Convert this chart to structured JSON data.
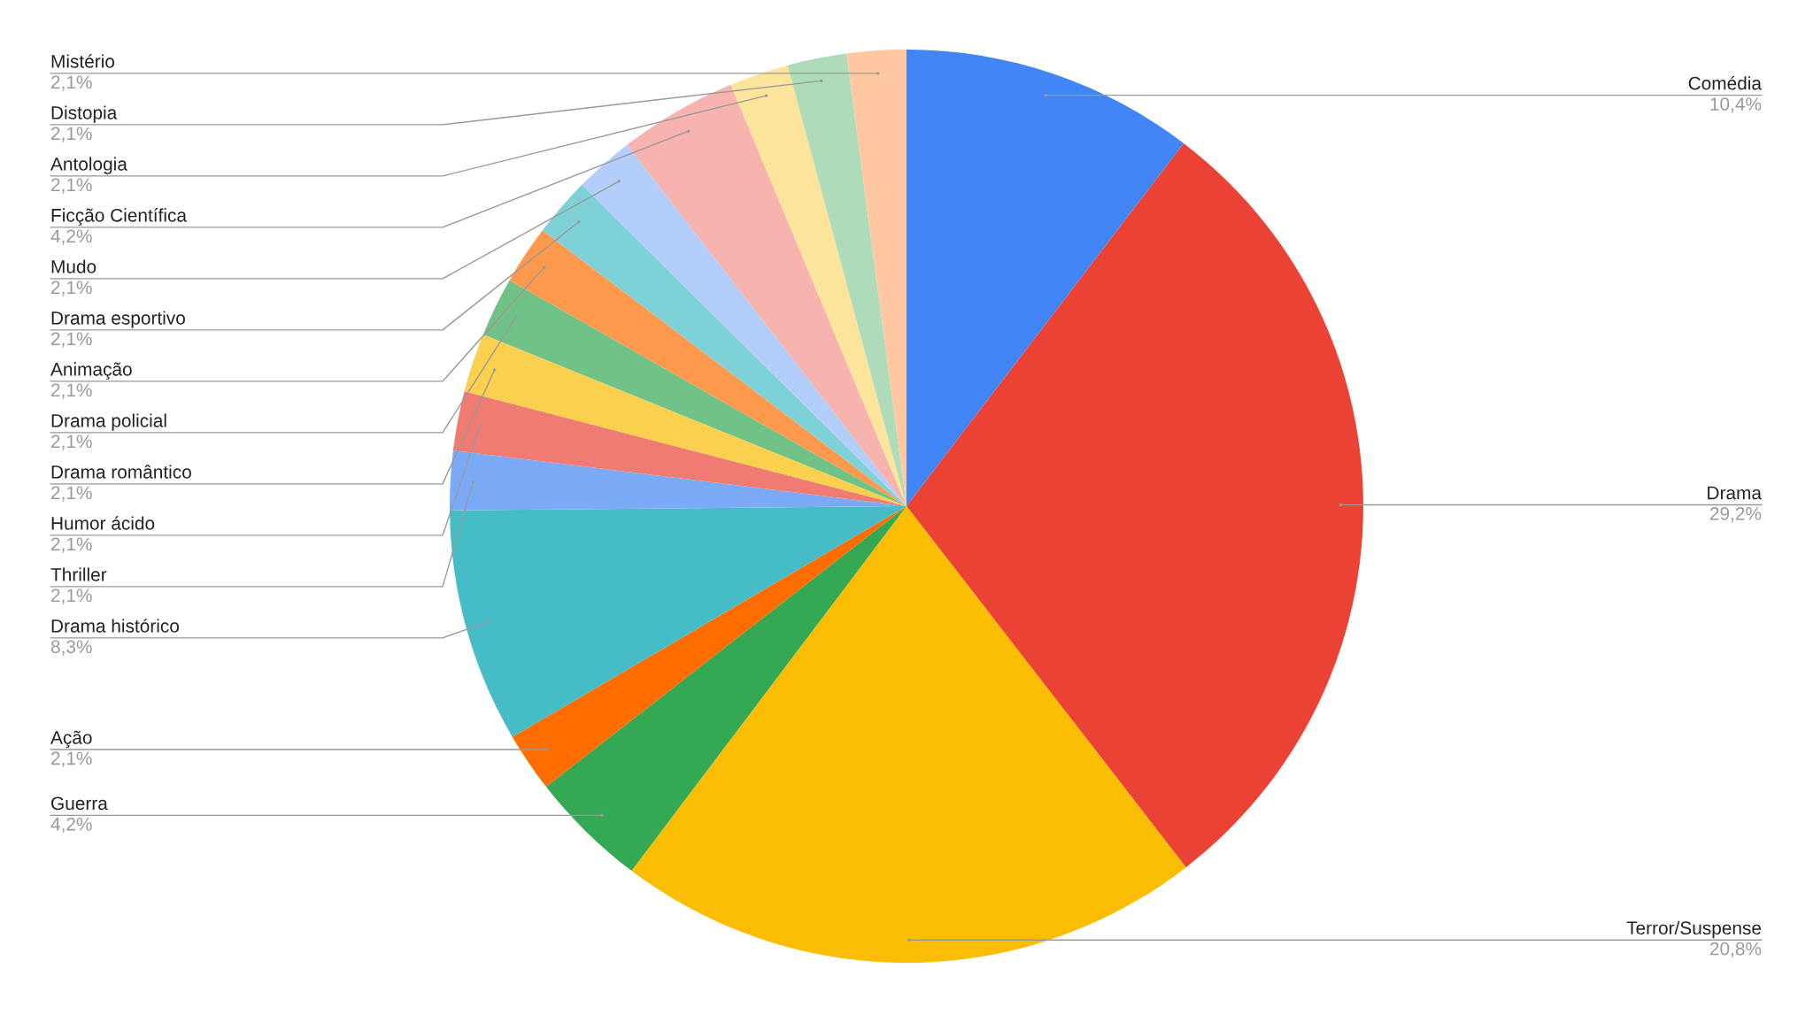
{
  "chart_data": {
    "type": "pie",
    "categories": [
      "Comédia",
      "Drama",
      "Terror/Suspense",
      "Guerra",
      "Ação",
      "Drama histórico",
      "Thriller",
      "Humor ácido",
      "Drama romântico",
      "Drama policial",
      "Animação",
      "Drama esportivo",
      "Mudo",
      "Ficção Científica",
      "Antologia",
      "Distopia",
      "Mistério"
    ],
    "values": [
      10.4,
      29.2,
      20.8,
      4.2,
      2.1,
      8.3,
      2.1,
      2.1,
      2.1,
      2.1,
      2.1,
      2.1,
      2.1,
      4.2,
      2.1,
      2.1,
      2.1
    ],
    "value_labels": [
      "10,4%",
      "29,2%",
      "20,8%",
      "4,2%",
      "2,1%",
      "8,3%",
      "2,1%",
      "2,1%",
      "2,1%",
      "2,1%",
      "2,1%",
      "2,1%",
      "2,1%",
      "4,2%",
      "2,1%",
      "2,1%",
      "2,1%"
    ],
    "colors": [
      "#4285f4",
      "#ea4335",
      "#fbbc04",
      "#34a853",
      "#ff6d01",
      "#46bdc6",
      "#7baaf7",
      "#f07b72",
      "#fcd04f",
      "#71c287",
      "#ff994d",
      "#7ed1d7",
      "#b3cefb",
      "#f7b4ae",
      "#fde49b",
      "#aedcba",
      "#ffc8a0"
    ]
  }
}
